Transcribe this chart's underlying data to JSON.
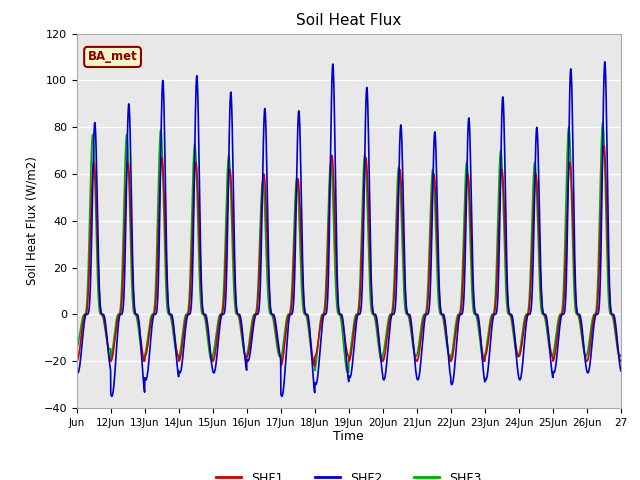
{
  "title": "Soil Heat Flux",
  "ylabel": "Soil Heat Flux (W/m2)",
  "xlabel": "Time",
  "xlim_start": 0,
  "xlim_end": 16,
  "ylim": [
    -40,
    120
  ],
  "yticks": [
    -40,
    -20,
    0,
    20,
    40,
    60,
    80,
    100,
    120
  ],
  "xtick_labels": [
    "Jun",
    "12Jun",
    "13Jun",
    "14Jun",
    "15Jun",
    "16Jun",
    "17Jun",
    "18Jun",
    "19Jun",
    "20Jun",
    "21Jun",
    "22Jun",
    "23Jun",
    "24Jun",
    "25Jun",
    "26Jun",
    "27"
  ],
  "grid_color": "#ffffff",
  "bg_color": "#e8e8e8",
  "annotation_text": "BA_met",
  "annotation_bg": "#f5f5c8",
  "annotation_border": "#8b0000",
  "shf1_color": "#cc0000",
  "shf2_color": "#0000cc",
  "shf3_color": "#00aa00",
  "legend_labels": [
    "SHF1",
    "SHF2",
    "SHF3"
  ],
  "day_peaks_shf2": [
    82,
    90,
    100,
    102,
    95,
    88,
    87,
    107,
    97,
    81,
    78,
    84,
    93,
    80,
    105,
    108
  ],
  "day_peaks_shf1": [
    65,
    65,
    67,
    65,
    62,
    60,
    58,
    68,
    67,
    62,
    60,
    60,
    62,
    60,
    65,
    72
  ],
  "day_peaks_shf3": [
    77,
    77,
    79,
    73,
    68,
    57,
    58,
    65,
    68,
    63,
    62,
    65,
    70,
    65,
    80,
    82
  ],
  "day_troughs_shf2": [
    -25,
    -35,
    -28,
    -25,
    -25,
    -20,
    -35,
    -30,
    -27,
    -28,
    -28,
    -30,
    -28,
    -28,
    -25,
    -25
  ],
  "day_troughs_shf1": [
    -20,
    -20,
    -18,
    -20,
    -20,
    -18,
    -22,
    -18,
    -20,
    -20,
    -20,
    -20,
    -18,
    -18,
    -20,
    -20
  ],
  "day_troughs_shf3": [
    -15,
    -20,
    -18,
    -20,
    -18,
    -18,
    -20,
    -25,
    -20,
    -18,
    -18,
    -20,
    -18,
    -18,
    -18,
    -18
  ]
}
